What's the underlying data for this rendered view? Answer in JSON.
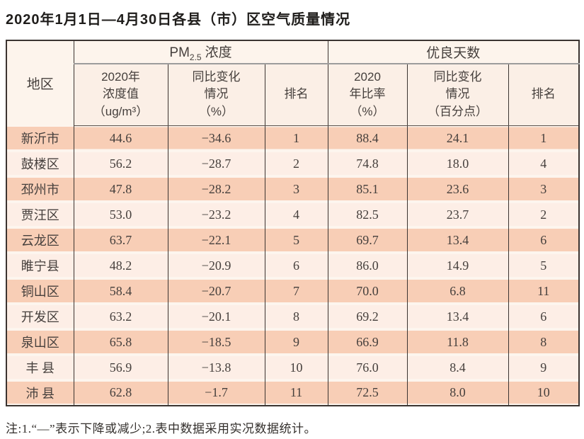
{
  "page": {
    "title": "2020年1月1日—4月30日各县（市）区空气质量情况",
    "note": "注:1.“—”表示下降或减少;2.表中数据采用实况数据统计。"
  },
  "table": {
    "header": {
      "region": "地区",
      "pm25_group": {
        "prefix": "PM",
        "subscript": "2.5",
        "suffix": "浓度"
      },
      "good_days_group": "优良天数",
      "sub_headers": {
        "pm_value": "2020年\n浓度值\n（ug/m³）",
        "pm_change": "同比变化\n情况\n（%）",
        "pm_rank": "排名",
        "ratio": "2020\n年比率\n（%）",
        "ratio_change": "同比变化\n情况\n（百分点）",
        "ratio_rank": "排名"
      }
    },
    "rows": [
      [
        "新沂市",
        "44.6",
        "−34.6",
        "1",
        "88.4",
        "24.1",
        "1"
      ],
      [
        "鼓楼区",
        "56.2",
        "−28.7",
        "2",
        "74.8",
        "18.0",
        "4"
      ],
      [
        "邳州市",
        "47.8",
        "−28.2",
        "3",
        "85.1",
        "23.6",
        "3"
      ],
      [
        "贾汪区",
        "53.0",
        "−23.2",
        "4",
        "82.5",
        "23.7",
        "2"
      ],
      [
        "云龙区",
        "63.7",
        "−22.1",
        "5",
        "69.7",
        "13.4",
        "6"
      ],
      [
        "睢宁县",
        "48.2",
        "−20.9",
        "6",
        "86.0",
        "14.9",
        "5"
      ],
      [
        "铜山区",
        "58.4",
        "−20.7",
        "7",
        "70.0",
        "6.8",
        "11"
      ],
      [
        "开发区",
        "63.2",
        "−20.1",
        "8",
        "69.2",
        "13.4",
        "6"
      ],
      [
        "泉山区",
        "65.8",
        "−18.5",
        "9",
        "66.9",
        "11.8",
        "8"
      ],
      [
        "丰 县",
        "56.9",
        "−13.8",
        "10",
        "76.0",
        "8.4",
        "9"
      ],
      [
        "沛 县",
        "62.8",
        "−1.7",
        "11",
        "72.5",
        "8.0",
        "10"
      ]
    ]
  },
  "colors": {
    "border_dark": "#3b3431",
    "header_divider_gray": "#9c9c9c",
    "header_bg": "#fdf4ec",
    "subheader_bg": "#fbefe6",
    "row_odd_bg": "#f8ceb6",
    "row_even_bg": "#fdeee6",
    "text": "#453f3c"
  }
}
